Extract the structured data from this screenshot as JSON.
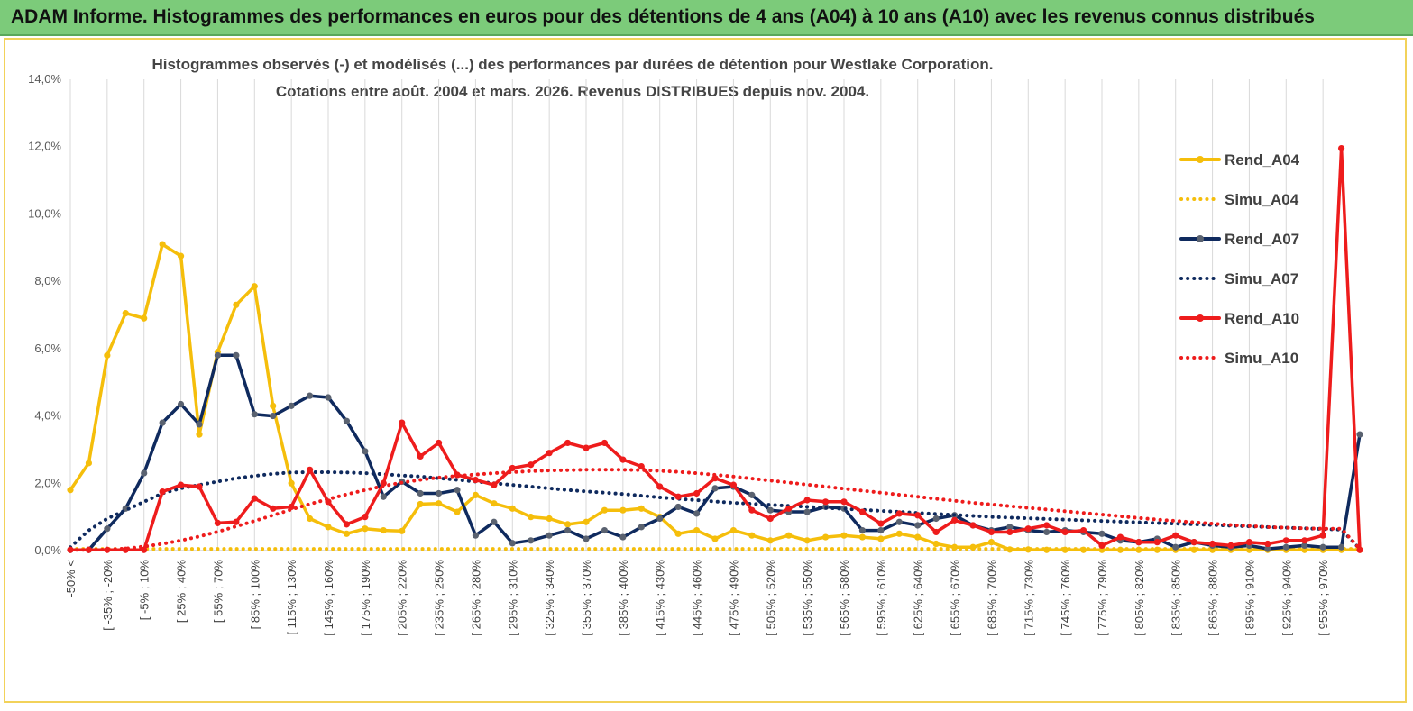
{
  "banner": {
    "title": "ADAM Informe. Histogrammes des performances en euros pour des détentions de 4 ans (A04) à 10 ans (A10) avec les revenus connus distribués"
  },
  "colors": {
    "banner_bg": "#7ccb7a",
    "frame": "#f2d25a",
    "A04": "#f5be0b",
    "A07": "#0f2a5e",
    "A07_marker": "#5a6270",
    "A10": "#ee1c1c"
  },
  "chart_data": {
    "type": "line",
    "title_line1": "Histogrammes observés (-) et modélisés (...) des performances par durées de détention pour Westlake Corporation.",
    "title_line2": "Cotations entre août. 2004 et mars. 2026. Revenus DISTRIBUES depuis nov. 2004.",
    "y_ticks": [
      "0,0%",
      "2,0%",
      "4,0%",
      "6,0%",
      "8,0%",
      "10,0%",
      "12,0%",
      "14,0%"
    ],
    "ylim": [
      0,
      14
    ],
    "grid": "vertical",
    "legend_position": "right",
    "x_tick_labels": [
      "-50% <",
      "[ -35% ; -20%",
      "[ -5% ; 10%",
      "[ 25% ; 40%",
      "[ 55% ; 70%",
      "[ 85% ; 100%",
      "[ 115% ; 130%",
      "[ 145% ; 160%",
      "[ 175% ; 190%",
      "[ 205% ; 220%",
      "[ 235% ; 250%",
      "[ 265% ; 280%",
      "[ 295% ; 310%",
      "[ 325% ; 340%",
      "[ 355% ; 370%",
      "[ 385% ; 400%",
      "[ 415% ; 430%",
      "[ 445% ; 460%",
      "[ 475% ; 490%",
      "[ 505% ; 520%",
      "[ 535% ; 550%",
      "[ 565% ; 580%",
      "[ 595% ; 610%",
      "[ 625% ; 640%",
      "[ 655% ; 670%",
      "[ 685% ; 700%",
      "[ 715% ; 730%",
      "[ 745% ; 760%",
      "[ 775% ; 790%",
      "[ 805% ; 820%",
      "[ 835% ; 850%",
      "[ 865% ; 880%",
      "[ 895% ; 910%",
      "[ 925% ; 940%",
      "[ 955% ; 970%"
    ],
    "series": [
      {
        "name": "Rend_A04",
        "style": "solid",
        "color": "#f5be0b",
        "values": [
          1.8,
          2.6,
          5.8,
          7.05,
          6.9,
          9.1,
          8.75,
          3.45,
          5.9,
          7.3,
          7.85,
          4.3,
          2.0,
          0.95,
          0.7,
          0.5,
          0.65,
          0.6,
          0.58,
          1.38,
          1.4,
          1.15,
          1.65,
          1.4,
          1.25,
          1.0,
          0.95,
          0.78,
          0.85,
          1.2,
          1.2,
          1.25,
          1.0,
          0.5,
          0.6,
          0.35,
          0.6,
          0.45,
          0.3,
          0.45,
          0.3,
          0.4,
          0.45,
          0.4,
          0.35,
          0.5,
          0.4,
          0.2,
          0.1,
          0.1,
          0.25,
          0.03,
          0.03,
          0.02,
          0.02,
          0.02,
          0.02,
          0.02,
          0.02,
          0.02,
          0.02,
          0.02,
          0.02,
          0.02,
          0.02,
          0.02,
          0.02,
          0.02,
          0.02,
          0.02,
          0.02
        ]
      },
      {
        "name": "Simu_A04",
        "style": "dotted",
        "color": "#f5be0b",
        "values": [
          0.05,
          0.05,
          0.05,
          0.05,
          0.05,
          0.05,
          0.05,
          0.05,
          0.05,
          0.05,
          0.05,
          0.05,
          0.05,
          0.05,
          0.05,
          0.05,
          0.05,
          0.05,
          0.05,
          0.05,
          0.05,
          0.05,
          0.05,
          0.05,
          0.05,
          0.05,
          0.05,
          0.05,
          0.05,
          0.05,
          0.05,
          0.05,
          0.05,
          0.05,
          0.05,
          0.05,
          0.05,
          0.05,
          0.05,
          0.05,
          0.05,
          0.05,
          0.05,
          0.05,
          0.05,
          0.05,
          0.05,
          0.05,
          0.05,
          0.05,
          0.05,
          0.05,
          0.05,
          0.05,
          0.05,
          0.05,
          0.05,
          0.05,
          0.05,
          0.05,
          0.05,
          0.05,
          0.05,
          0.05,
          0.05,
          0.05,
          0.05,
          0.05,
          0.05,
          0.05,
          0.05
        ]
      },
      {
        "name": "Rend_A07",
        "style": "solid",
        "color": "#0f2a5e",
        "values": [
          0.02,
          0.02,
          0.65,
          1.25,
          2.3,
          3.8,
          4.35,
          3.75,
          5.8,
          5.8,
          4.05,
          4.0,
          4.3,
          4.6,
          4.55,
          3.85,
          2.95,
          1.6,
          2.05,
          1.7,
          1.7,
          1.8,
          0.45,
          0.85,
          0.22,
          0.3,
          0.45,
          0.6,
          0.35,
          0.6,
          0.4,
          0.7,
          0.95,
          1.3,
          1.1,
          1.85,
          1.9,
          1.65,
          1.2,
          1.15,
          1.15,
          1.3,
          1.25,
          0.6,
          0.6,
          0.85,
          0.75,
          0.95,
          1.05,
          0.75,
          0.6,
          0.7,
          0.6,
          0.55,
          0.6,
          0.55,
          0.5,
          0.3,
          0.25,
          0.35,
          0.1,
          0.25,
          0.15,
          0.1,
          0.15,
          0.05,
          0.1,
          0.15,
          0.1,
          0.1,
          3.45
        ]
      },
      {
        "name": "Simu_A07",
        "style": "dotted",
        "color": "#0f2a5e",
        "values": [
          0.1,
          0.6,
          0.95,
          1.2,
          1.45,
          1.7,
          1.85,
          1.95,
          2.05,
          2.15,
          2.22,
          2.28,
          2.32,
          2.33,
          2.33,
          2.32,
          2.3,
          2.27,
          2.23,
          2.2,
          2.15,
          2.1,
          2.05,
          2.0,
          1.95,
          1.9,
          1.85,
          1.8,
          1.76,
          1.72,
          1.68,
          1.63,
          1.58,
          1.54,
          1.5,
          1.46,
          1.42,
          1.39,
          1.36,
          1.33,
          1.3,
          1.27,
          1.24,
          1.21,
          1.18,
          1.15,
          1.12,
          1.09,
          1.06,
          1.03,
          1.0,
          0.98,
          0.96,
          0.94,
          0.92,
          0.9,
          0.88,
          0.86,
          0.84,
          0.82,
          0.8,
          0.78,
          0.76,
          0.74,
          0.72,
          0.7,
          0.68,
          0.66,
          0.64,
          0.62,
          0.05
        ]
      },
      {
        "name": "Rend_A10",
        "style": "solid",
        "color": "#ee1c1c",
        "values": [
          0.02,
          0.02,
          0.02,
          0.02,
          0.02,
          1.75,
          1.95,
          1.9,
          0.82,
          0.85,
          1.55,
          1.25,
          1.3,
          2.4,
          1.45,
          0.78,
          1.0,
          2.0,
          3.8,
          2.8,
          3.2,
          2.25,
          2.1,
          1.95,
          2.45,
          2.55,
          2.9,
          3.2,
          3.05,
          3.2,
          2.7,
          2.5,
          1.9,
          1.6,
          1.7,
          2.15,
          1.95,
          1.2,
          0.95,
          1.25,
          1.5,
          1.45,
          1.45,
          1.15,
          0.8,
          1.1,
          1.05,
          0.55,
          0.9,
          0.75,
          0.55,
          0.55,
          0.65,
          0.75,
          0.55,
          0.6,
          0.15,
          0.4,
          0.25,
          0.25,
          0.45,
          0.25,
          0.2,
          0.15,
          0.25,
          0.2,
          0.3,
          0.3,
          0.45,
          11.95,
          0.02
        ]
      },
      {
        "name": "Simu_A10",
        "style": "dotted",
        "color": "#ee1c1c",
        "values": [
          0.02,
          0.02,
          0.03,
          0.06,
          0.12,
          0.2,
          0.3,
          0.42,
          0.56,
          0.72,
          0.88,
          1.05,
          1.22,
          1.38,
          1.53,
          1.67,
          1.8,
          1.92,
          2.02,
          2.1,
          2.17,
          2.22,
          2.26,
          2.3,
          2.33,
          2.36,
          2.38,
          2.39,
          2.4,
          2.4,
          2.4,
          2.39,
          2.37,
          2.34,
          2.3,
          2.25,
          2.2,
          2.14,
          2.08,
          2.02,
          1.96,
          1.9,
          1.84,
          1.78,
          1.72,
          1.66,
          1.6,
          1.54,
          1.48,
          1.42,
          1.37,
          1.32,
          1.27,
          1.22,
          1.17,
          1.12,
          1.07,
          1.02,
          0.97,
          0.92,
          0.88,
          0.84,
          0.8,
          0.76,
          0.73,
          0.7,
          0.68,
          0.66,
          0.65,
          0.65,
          0.05
        ]
      }
    ]
  }
}
